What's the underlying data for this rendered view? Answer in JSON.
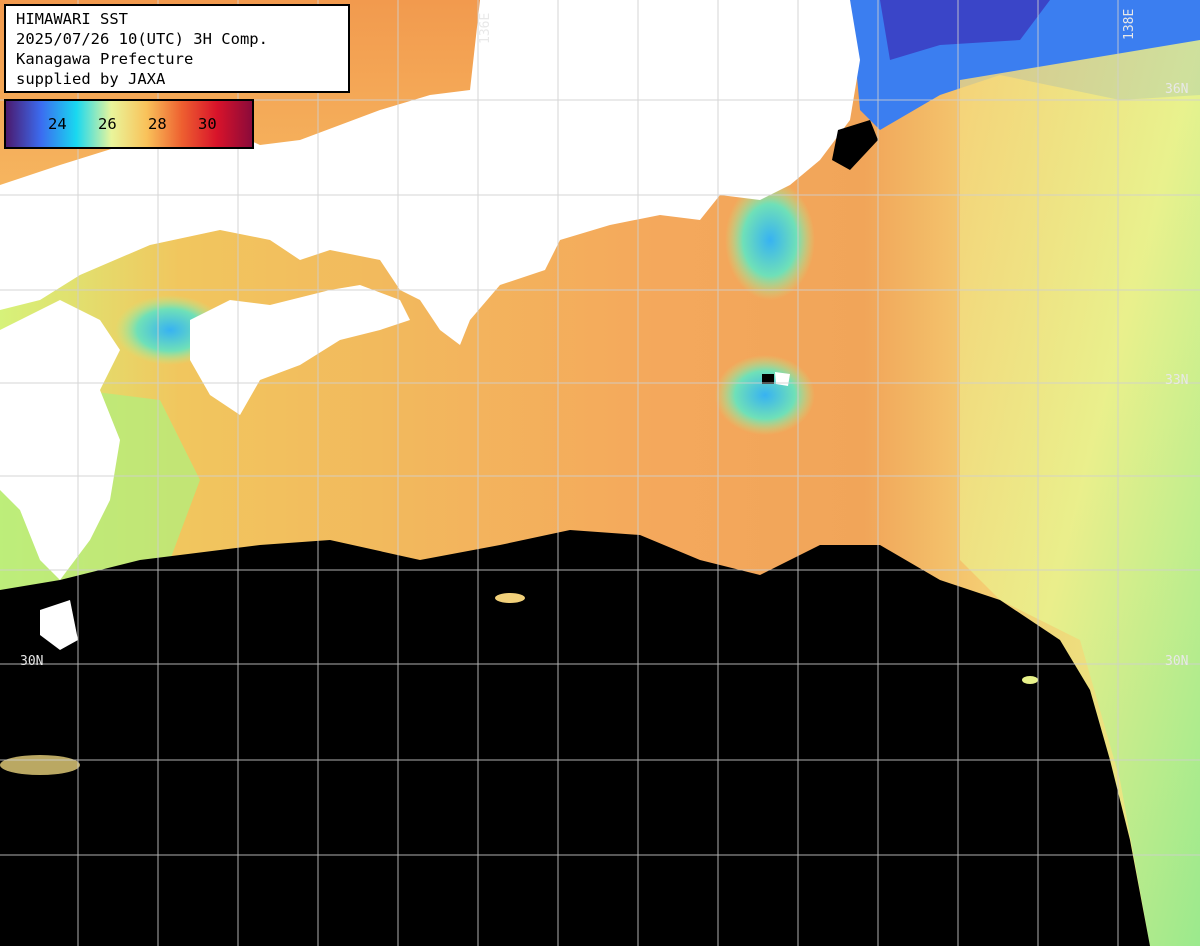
{
  "title": {
    "line1": "HIMAWARI SST",
    "line2": "2025/07/26 10(UTC) 3H Comp.",
    "line3": "Kanagawa Prefecture",
    "line4": "supplied by JAXA"
  },
  "legend": {
    "labels": [
      "24",
      "26",
      "28",
      "30"
    ],
    "gradient": [
      "#4b1a6e",
      "#3b6cf0",
      "#19d8f0",
      "#e9f59b",
      "#f9c25a",
      "#ee6030",
      "#d8132a",
      "#8b0a3a"
    ]
  },
  "axes": {
    "lon_label": "136E",
    "lon_label_partial": "138E",
    "lat_labels": [
      "36N",
      "33N",
      "30N",
      "30N"
    ]
  },
  "colors": {
    "land": "#ffffff",
    "no_data": "#000000",
    "grid": "#cfcfcf",
    "sst_warm": "#f5a55a",
    "sst_mid": "#f3e98a",
    "sst_cool": "#7ee89a",
    "sst_cold": "#3bb0f0"
  }
}
